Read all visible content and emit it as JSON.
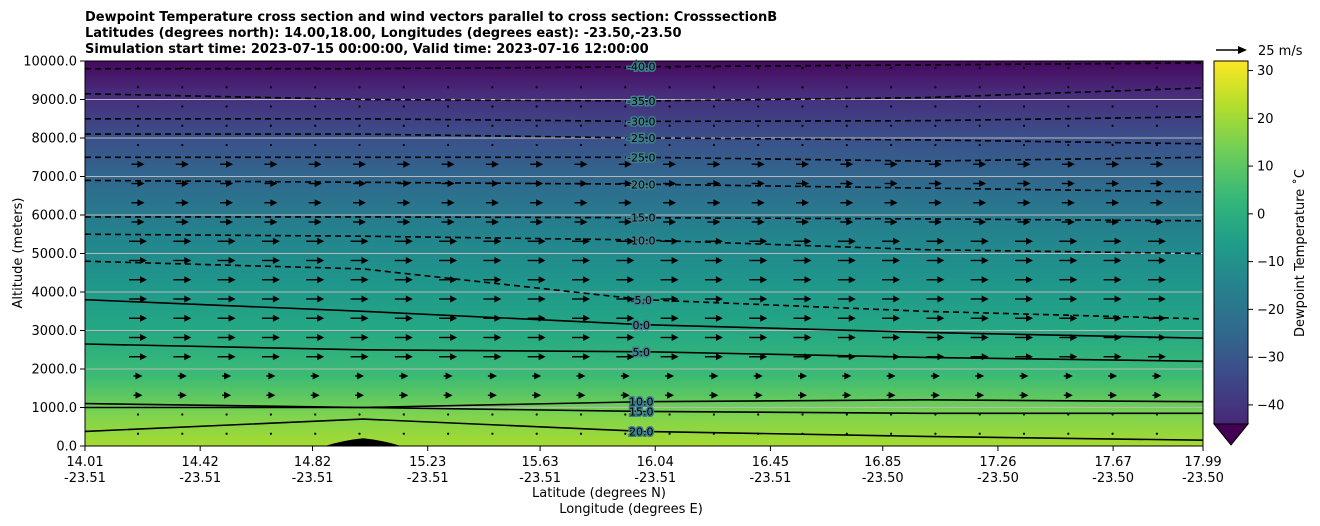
{
  "chart_data": {
    "type": "contour_cross_section",
    "title_lines": [
      "Dewpoint Temperature cross section and wind vectors parallel to cross section: CrosssectionB",
      "Latitudes (degrees north): 14.00,18.00, Longitudes (degrees east): -23.50,-23.50",
      "Simulation start time: 2023-07-15 00:00:00, Valid time: 2023-07-16 12:00:00"
    ],
    "ylabel": "Altitude (meters)",
    "xlabel_lines": [
      "Latitude (degrees N)",
      "Longitude (degrees E)"
    ],
    "ylim": [
      0,
      10000
    ],
    "y_ticks": [
      "0.0",
      "1000.0",
      "2000.0",
      "3000.0",
      "4000.0",
      "5000.0",
      "6000.0",
      "7000.0",
      "8000.0",
      "9000.0",
      "10000.0"
    ],
    "x_ticks": [
      {
        "lat": "14.01",
        "lon": "-23.51"
      },
      {
        "lat": "14.42",
        "lon": "-23.51"
      },
      {
        "lat": "14.82",
        "lon": "-23.51"
      },
      {
        "lat": "15.23",
        "lon": "-23.51"
      },
      {
        "lat": "15.63",
        "lon": "-23.51"
      },
      {
        "lat": "16.04",
        "lon": "-23.51"
      },
      {
        "lat": "16.45",
        "lon": "-23.51"
      },
      {
        "lat": "16.85",
        "lon": "-23.50"
      },
      {
        "lat": "17.26",
        "lon": "-23.50"
      },
      {
        "lat": "17.67",
        "lon": "-23.50"
      },
      {
        "lat": "17.99",
        "lon": "-23.50"
      }
    ],
    "colorbar": {
      "label": "Dewpoint Temperature ˚C",
      "range": [
        -44,
        32
      ],
      "ticks": [
        "30",
        "20",
        "10",
        "0",
        "−10",
        "−20",
        "−30",
        "−40"
      ],
      "extend": "min",
      "colormap": "viridis"
    },
    "quiver_key": {
      "label": "25 m/s"
    },
    "grid": "horizontal",
    "terrain_peak_lat": 15.0,
    "terrain_peak_altitude": 200,
    "contour_levels": [
      -40,
      -35,
      -30,
      -25,
      -20,
      -15,
      -10,
      -5,
      0,
      5,
      10,
      15,
      20
    ],
    "contours": [
      {
        "level": -40,
        "label": "-40.0",
        "dashed": true,
        "points": [
          [
            14.01,
            9800
          ],
          [
            15.0,
            9800
          ],
          [
            16.0,
            9850
          ],
          [
            17.0,
            9900
          ],
          [
            17.99,
            9950
          ]
        ]
      },
      {
        "level": -35,
        "label": "-35.0",
        "dashed": true,
        "points": [
          [
            14.01,
            9150
          ],
          [
            15.0,
            9000
          ],
          [
            16.0,
            8960
          ],
          [
            17.0,
            9050
          ],
          [
            17.99,
            9300
          ]
        ]
      },
      {
        "level": -30,
        "label": "-30.0",
        "dashed": true,
        "points": [
          [
            14.01,
            8500
          ],
          [
            15.0,
            8500
          ],
          [
            16.0,
            8430
          ],
          [
            17.0,
            8450
          ],
          [
            17.99,
            8550
          ]
        ]
      },
      {
        "level": -25,
        "label": "-25.0",
        "dashed": true,
        "points": [
          [
            14.01,
            8100
          ],
          [
            15.0,
            8100
          ],
          [
            16.0,
            8000
          ],
          [
            17.0,
            7950
          ],
          [
            17.99,
            7850
          ]
        ]
      },
      {
        "level": -25,
        "label": "-25.0",
        "dashed": true,
        "points": [
          [
            14.01,
            7500
          ],
          [
            15.0,
            7500
          ],
          [
            16.0,
            7500
          ],
          [
            17.0,
            7400
          ],
          [
            17.99,
            7500
          ]
        ]
      },
      {
        "level": -20,
        "label": "-20.0",
        "dashed": true,
        "points": [
          [
            14.01,
            6900
          ],
          [
            15.0,
            6850
          ],
          [
            16.0,
            6800
          ],
          [
            17.0,
            6700
          ],
          [
            17.99,
            6600
          ]
        ]
      },
      {
        "level": -15,
        "label": "-15.0",
        "dashed": true,
        "points": [
          [
            14.01,
            5950
          ],
          [
            15.0,
            5950
          ],
          [
            16.0,
            5930
          ],
          [
            17.0,
            5900
          ],
          [
            17.99,
            5850
          ]
        ]
      },
      {
        "level": -10,
        "label": "-10.0",
        "dashed": true,
        "points": [
          [
            14.01,
            5500
          ],
          [
            15.0,
            5450
          ],
          [
            16.0,
            5350
          ],
          [
            17.0,
            5100
          ],
          [
            17.99,
            5000
          ]
        ]
      },
      {
        "level": -5,
        "label": "-5.0",
        "dashed": true,
        "points": [
          [
            14.01,
            4800
          ],
          [
            15.0,
            4600
          ],
          [
            16.0,
            3800
          ],
          [
            17.0,
            3500
          ],
          [
            17.99,
            3300
          ]
        ]
      },
      {
        "level": 0,
        "label": "0.0",
        "dashed": false,
        "points": [
          [
            14.01,
            3800
          ],
          [
            15.0,
            3500
          ],
          [
            16.0,
            3150
          ],
          [
            17.0,
            2950
          ],
          [
            17.99,
            2800
          ]
        ]
      },
      {
        "level": 5,
        "label": "5.0",
        "dashed": false,
        "points": [
          [
            14.01,
            2650
          ],
          [
            15.0,
            2500
          ],
          [
            16.0,
            2450
          ],
          [
            17.0,
            2300
          ],
          [
            17.99,
            2200
          ]
        ]
      },
      {
        "level": 10,
        "label": "10.0",
        "dashed": false,
        "points": [
          [
            14.01,
            1100
          ],
          [
            15.0,
            1000
          ],
          [
            16.0,
            1150
          ],
          [
            17.0,
            1200
          ],
          [
            17.99,
            1150
          ]
        ]
      },
      {
        "level": 15,
        "label": "15.0",
        "dashed": false,
        "points": [
          [
            14.01,
            1000
          ],
          [
            15.0,
            1000
          ],
          [
            16.0,
            900
          ],
          [
            17.0,
            850
          ],
          [
            17.99,
            850
          ]
        ]
      },
      {
        "level": 20,
        "label": "20.0",
        "dashed": false,
        "points": [
          [
            14.01,
            380
          ],
          [
            15.0,
            700
          ],
          [
            16.0,
            380
          ],
          [
            17.0,
            250
          ],
          [
            17.99,
            150
          ]
        ]
      }
    ]
  }
}
